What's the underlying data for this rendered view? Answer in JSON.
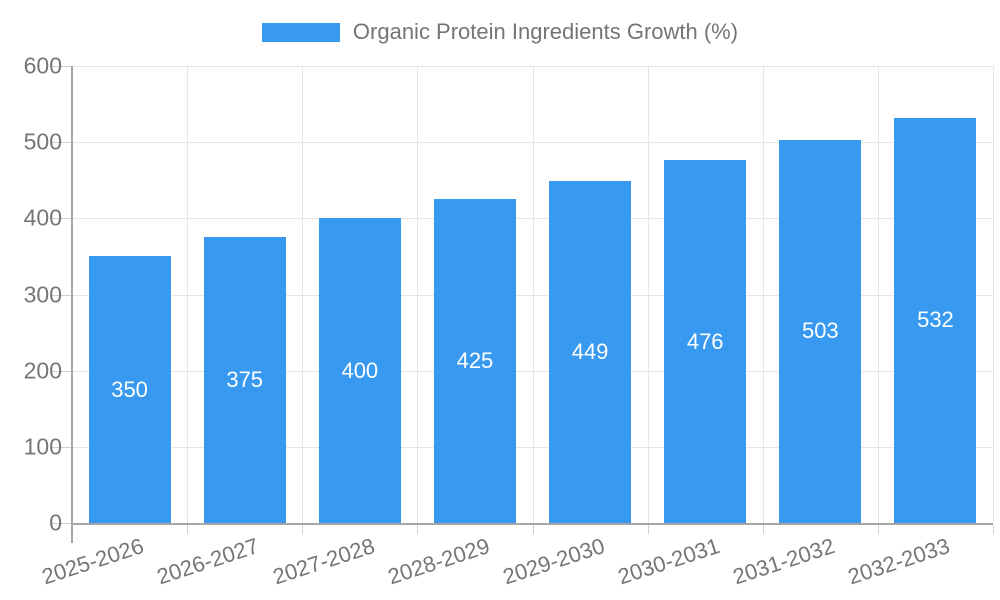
{
  "chart_data": {
    "type": "bar",
    "title": "Organic Protein Ingredients Growth (%)",
    "legend_position": "top",
    "categories": [
      "2025-2026",
      "2026-2027",
      "2027-2028",
      "2028-2029",
      "2029-2030",
      "2030-2031",
      "2031-2032",
      "2032-2033"
    ],
    "series": [
      {
        "name": "Organic Protein Ingredients Growth (%)",
        "color": "#3899F0",
        "values": [
          350,
          375,
          400,
          425,
          449,
          476,
          503,
          532
        ]
      }
    ],
    "xlabel": "",
    "ylabel": "",
    "y_axis": {
      "min": 0,
      "max": 600,
      "step": 100,
      "tick_labels": [
        "0",
        "100",
        "200",
        "300",
        "400",
        "500",
        "600"
      ]
    },
    "x_label_rotation_deg": -18,
    "grid": true,
    "value_labels_shown": true,
    "colors": {
      "bar": "#3899F0",
      "gridline": "#e6e6e6",
      "tick": "#cfcfcf",
      "axis_line": "#a6a6a6",
      "axis_text": "#757575",
      "value_text": "#ffffff",
      "background": "#ffffff"
    }
  }
}
